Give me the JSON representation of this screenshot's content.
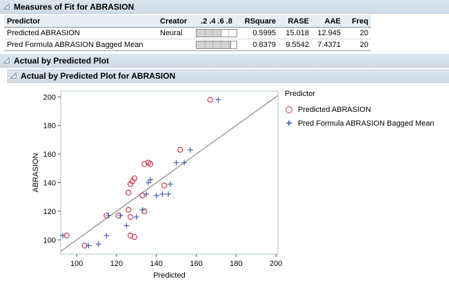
{
  "colors": {
    "band_bg": "#d7e1ea",
    "table_header_bg": "#e8eef4",
    "bar_fill": "#d3d3d3"
  },
  "measures_section": {
    "title": "Measures of Fit for ABRASION",
    "table": {
      "headers": [
        "Predictor",
        "Creator",
        ".2 .4 .6 .8",
        "RSquare",
        "RASE",
        "AAE",
        "Freq"
      ],
      "rows": [
        {
          "predictor": "Predicted ABRASION",
          "creator": "Neural",
          "rsquare_bar": 0.5995,
          "rsquare": "0.5995",
          "rase": "15.018",
          "aae": "12.945",
          "freq": "20"
        },
        {
          "predictor": "Pred Formula ABRASION Bagged Mean",
          "creator": "",
          "rsquare_bar": 0.8379,
          "rsquare": "0.8379",
          "rase": "9.5542",
          "aae": "7.4371",
          "freq": "20"
        }
      ]
    }
  },
  "plot_section": {
    "outer_title": "Actual by Predicted Plot",
    "inner_title": "Actual by Predicted Plot for ABRASION"
  },
  "chart_data": {
    "type": "scatter",
    "title": "Actual by Predicted Plot for ABRASION",
    "xlabel": "Predicted",
    "ylabel": "ABRASION",
    "xlim": [
      92,
      201
    ],
    "ylim": [
      90,
      204
    ],
    "xticks": [
      100,
      120,
      140,
      160,
      180,
      200
    ],
    "yticks": [
      100,
      120,
      140,
      160,
      180,
      200
    ],
    "grid": false,
    "reference_line": "y=x",
    "frame_color": "#a9c0d2",
    "reference_line_color": "#6f6f6f",
    "legend_title": "Predictor",
    "legend_position": "right",
    "series": [
      {
        "name": "Predicted ABRASION",
        "marker": "circle",
        "color": "#cb3848",
        "points": [
          [
            95,
            103
          ],
          [
            104,
            96
          ],
          [
            127,
            103
          ],
          [
            129,
            102
          ],
          [
            115,
            117
          ],
          [
            121,
            117
          ],
          [
            126,
            121
          ],
          [
            127,
            116
          ],
          [
            126,
            133
          ],
          [
            127,
            139
          ],
          [
            128,
            141
          ],
          [
            129,
            143
          ],
          [
            134,
            120
          ],
          [
            133,
            131
          ],
          [
            134,
            153
          ],
          [
            136,
            154
          ],
          [
            137,
            153
          ],
          [
            144,
            138
          ],
          [
            152,
            163
          ],
          [
            167,
            198
          ]
        ]
      },
      {
        "name": "Pred Formula ABRASION Bagged Mean",
        "marker": "plus",
        "color": "#3b5da8",
        "points": [
          [
            93,
            103
          ],
          [
            106,
            96
          ],
          [
            111,
            97
          ],
          [
            115,
            103
          ],
          [
            116,
            117
          ],
          [
            122,
            117
          ],
          [
            125,
            110
          ],
          [
            130,
            116
          ],
          [
            133,
            121
          ],
          [
            135,
            132
          ],
          [
            136,
            140
          ],
          [
            137,
            142
          ],
          [
            140,
            131
          ],
          [
            143,
            132
          ],
          [
            146,
            132
          ],
          [
            147,
            139
          ],
          [
            150,
            154
          ],
          [
            154,
            154
          ],
          [
            157,
            163
          ],
          [
            171,
            198
          ]
        ]
      }
    ]
  }
}
